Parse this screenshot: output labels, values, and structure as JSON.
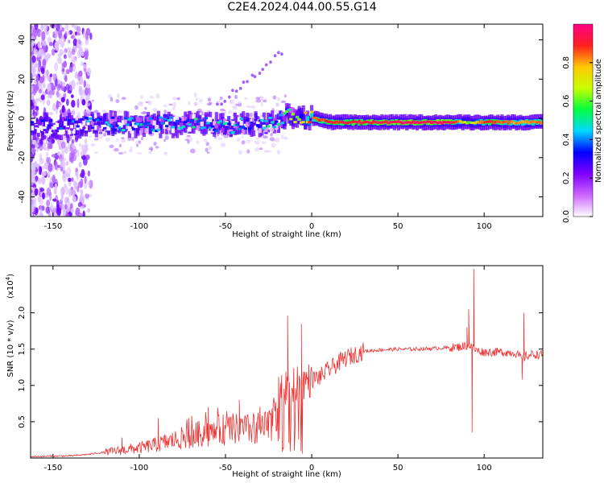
{
  "figure": {
    "title": "C2E4.2024.044.00.55.G14"
  },
  "chart_data": [
    {
      "type": "heatmap",
      "xlabel": "Height of straight line (km)",
      "ylabel": "Frequency (Hz)",
      "xlim": [
        -163,
        134
      ],
      "ylim": [
        -50,
        48
      ],
      "xticks": [
        -150,
        -100,
        -50,
        0,
        50,
        100
      ],
      "yticks": [
        -40,
        -20,
        0,
        20,
        40
      ],
      "grid": false,
      "colorbar": {
        "label": "Normalized spectral amplitude",
        "range": [
          0,
          1
        ],
        "ticks": [
          0.0,
          0.2,
          0.4,
          0.6,
          0.8
        ],
        "colormap": [
          "#ffffff",
          "#cc66ff",
          "#8000ff",
          "#0000ff",
          "#00d8ff",
          "#00ff40",
          "#c8ff00",
          "#ffc800",
          "#ff2020",
          "#ff0088"
        ]
      },
      "ridge": {
        "x": [
          -155,
          -140,
          -130,
          -120,
          -110,
          -100,
          -90,
          -80,
          -70,
          -60,
          -50,
          -40,
          -30,
          -20,
          -15,
          -10,
          -5,
          0,
          10,
          50,
          80,
          90,
          100,
          110,
          120,
          134
        ],
        "freq": [
          -4,
          -4,
          -3,
          -3,
          -3,
          -3,
          -3,
          -3,
          -2,
          -3,
          -4,
          -3,
          -3,
          -2,
          1,
          1,
          0,
          0,
          -2,
          -2,
          -2,
          -2,
          -2,
          -2,
          -2,
          -2
        ],
        "amplitude": [
          0.25,
          0.3,
          0.35,
          0.4,
          0.4,
          0.45,
          0.45,
          0.4,
          0.45,
          0.45,
          0.4,
          0.35,
          0.4,
          0.45,
          0.55,
          0.6,
          0.75,
          0.85,
          0.9,
          0.95,
          0.95,
          0.6,
          0.9,
          0.85,
          0.8,
          0.85
        ]
      }
    },
    {
      "type": "line",
      "xlabel": "Height of straight line (km)",
      "ylabel": "SNR (10 * v/v)",
      "scale_label": "(x10",
      "scale_exp": "4",
      "scale_close": ")",
      "xlim": [
        -163,
        134
      ],
      "ylim": [
        0,
        2.65
      ],
      "xticks": [
        -150,
        -100,
        -50,
        0,
        50,
        100
      ],
      "yticks": [
        0.5,
        1.0,
        1.5,
        2.0
      ],
      "color": "#ee3333",
      "grid": false,
      "series": [
        {
          "envelope_x": [
            -163,
            -140,
            -130,
            -120,
            -110,
            -100,
            -90,
            -80,
            -70,
            -60,
            -50,
            -40,
            -30,
            -25,
            -20,
            -15,
            -10,
            -5,
            0,
            5,
            10,
            20,
            30,
            40,
            50,
            60,
            70,
            80,
            85,
            88,
            90,
            92,
            94,
            96,
            100,
            110,
            118,
            120,
            122,
            124,
            128,
            134
          ],
          "envelope_y": [
            0.02,
            0.03,
            0.05,
            0.08,
            0.12,
            0.16,
            0.22,
            0.3,
            0.38,
            0.45,
            0.5,
            0.5,
            0.48,
            0.55,
            0.85,
            0.95,
            1.0,
            1.05,
            1.08,
            1.12,
            1.22,
            1.38,
            1.47,
            1.49,
            1.5,
            1.5,
            1.51,
            1.52,
            1.53,
            1.54,
            1.55,
            1.55,
            1.5,
            1.48,
            1.46,
            1.46,
            1.45,
            1.42,
            1.35,
            1.4,
            1.43,
            1.42
          ],
          "spikes": [
            {
              "x": -110,
              "y": 0.28
            },
            {
              "x": -89,
              "y": 0.55
            },
            {
              "x": -60,
              "y": 0.7
            },
            {
              "x": -42,
              "y": 0.8
            },
            {
              "x": -14,
              "y": 1.96
            },
            {
              "x": -6,
              "y": 1.85
            },
            {
              "x": 90,
              "y": 1.8
            },
            {
              "x": 91,
              "y": 2.05
            },
            {
              "x": 93,
              "y": 0.35
            },
            {
              "x": 94,
              "y": 2.6
            },
            {
              "x": 122,
              "y": 1.08
            },
            {
              "x": 123,
              "y": 2.0
            }
          ]
        }
      ]
    }
  ]
}
